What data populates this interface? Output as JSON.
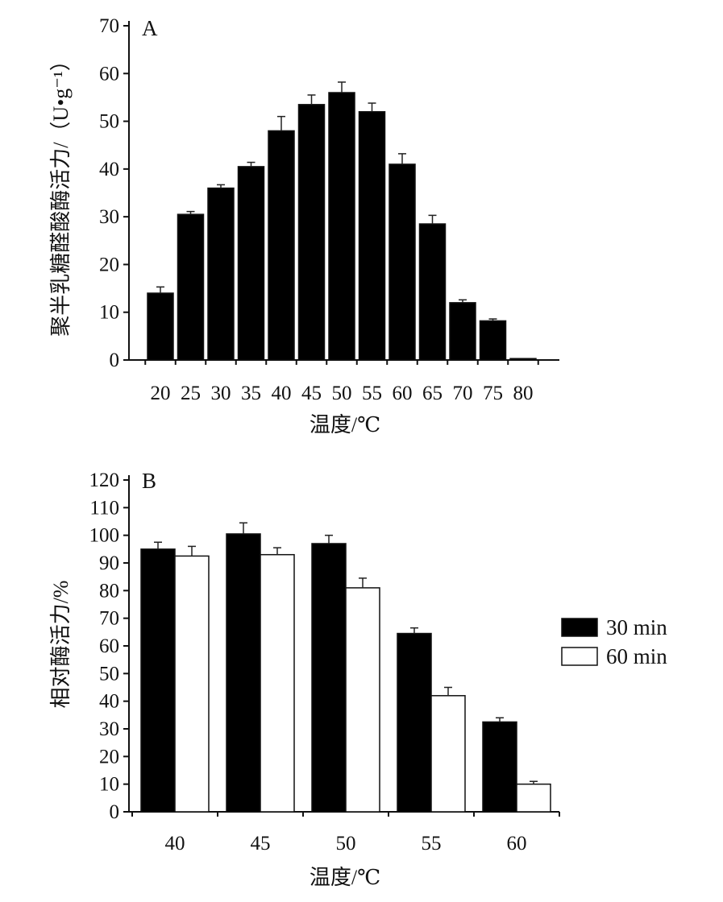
{
  "chart_data": [
    {
      "panel": "A",
      "type": "bar",
      "title": "",
      "xlabel": "温度/℃",
      "ylabel": "聚半乳糖醛酸酶活力/（U•g⁻¹）",
      "categories": [
        "20",
        "25",
        "30",
        "35",
        "40",
        "45",
        "50",
        "55",
        "60",
        "65",
        "70",
        "75",
        "80"
      ],
      "series": [
        {
          "name": "",
          "color": "#000000",
          "values": [
            14,
            30.5,
            36,
            40.5,
            48,
            53.5,
            56,
            52,
            41,
            28.5,
            12,
            8.2,
            0.3
          ],
          "errors": [
            1.3,
            0.6,
            0.7,
            0.9,
            3.0,
            2.0,
            2.2,
            1.8,
            2.2,
            1.8,
            0.6,
            0.4,
            0.1
          ]
        }
      ],
      "yticks": [
        0,
        10,
        20,
        30,
        40,
        50,
        60,
        70
      ],
      "ylim": [
        0,
        70
      ],
      "grid": false,
      "legend": "none"
    },
    {
      "panel": "B",
      "type": "bar",
      "title": "",
      "xlabel": "温度/℃",
      "ylabel": "相对酶活力/%",
      "categories": [
        "40",
        "45",
        "50",
        "55",
        "60"
      ],
      "series": [
        {
          "name": "30 min",
          "color": "#000000",
          "values": [
            95,
            100.5,
            97,
            64.5,
            32.5
          ],
          "errors": [
            2.5,
            4.0,
            3.0,
            2.0,
            1.5
          ]
        },
        {
          "name": "60 min",
          "color": "#ffffff",
          "values": [
            92.5,
            93,
            81,
            42,
            10
          ],
          "errors": [
            3.5,
            2.5,
            3.5,
            3.0,
            1.0
          ]
        }
      ],
      "yticks": [
        0,
        10,
        20,
        30,
        40,
        50,
        60,
        70,
        80,
        90,
        100,
        110,
        120
      ],
      "ylim": [
        0,
        120
      ],
      "grid": false,
      "legend": "right"
    }
  ]
}
